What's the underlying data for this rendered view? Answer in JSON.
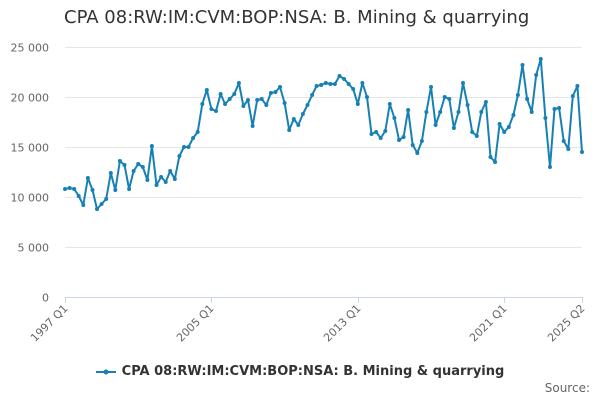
{
  "colors": {
    "series": "#1781b5",
    "grid": "#e6e6e6",
    "axis_line": "#ccd6eb",
    "tick_text": "#666666",
    "title_text": "#333333"
  },
  "source_label": "Source:",
  "chart_data": {
    "type": "line",
    "title": "CPA 08:RW:IM:CVM:BOP:NSA: B. Mining & quarrying",
    "xlabel": "",
    "ylabel": "",
    "ylim": [
      0,
      25000
    ],
    "yticks": [
      0,
      5000,
      10000,
      15000,
      20000,
      25000
    ],
    "ytick_labels": [
      "0",
      "5 000",
      "10 000",
      "15 000",
      "20 000",
      "25 000"
    ],
    "x_start": "1997 Q1",
    "x_end": "2025 Q2",
    "xtick_labels": [
      "1997 Q1",
      "2005 Q1",
      "2013 Q1",
      "2021 Q1",
      "2025 Q2"
    ],
    "legend_position": "bottom-center",
    "grid": true,
    "series": [
      {
        "name": "CPA 08:RW:IM:CVM:BOP:NSA: B. Mining & quarrying",
        "x": [
          "1997 Q1",
          "1997 Q2",
          "1997 Q3",
          "1997 Q4",
          "1998 Q1",
          "1998 Q2",
          "1998 Q3",
          "1998 Q4",
          "1999 Q1",
          "1999 Q2",
          "1999 Q3",
          "1999 Q4",
          "2000 Q1",
          "2000 Q2",
          "2000 Q3",
          "2000 Q4",
          "2001 Q1",
          "2001 Q2",
          "2001 Q3",
          "2001 Q4",
          "2002 Q1",
          "2002 Q2",
          "2002 Q3",
          "2002 Q4",
          "2003 Q1",
          "2003 Q2",
          "2003 Q3",
          "2003 Q4",
          "2004 Q1",
          "2004 Q2",
          "2004 Q3",
          "2004 Q4",
          "2005 Q1",
          "2005 Q2",
          "2005 Q3",
          "2005 Q4",
          "2006 Q1",
          "2006 Q2",
          "2006 Q3",
          "2006 Q4",
          "2007 Q1",
          "2007 Q2",
          "2007 Q3",
          "2007 Q4",
          "2008 Q1",
          "2008 Q2",
          "2008 Q3",
          "2008 Q4",
          "2009 Q1",
          "2009 Q2",
          "2009 Q3",
          "2009 Q4",
          "2010 Q1",
          "2010 Q2",
          "2010 Q3",
          "2010 Q4",
          "2011 Q1",
          "2011 Q2",
          "2011 Q3",
          "2011 Q4",
          "2012 Q1",
          "2012 Q2",
          "2012 Q3",
          "2012 Q4",
          "2013 Q1",
          "2013 Q2",
          "2013 Q3",
          "2013 Q4",
          "2014 Q1",
          "2014 Q2",
          "2014 Q3",
          "2014 Q4",
          "2015 Q1",
          "2015 Q2",
          "2015 Q3",
          "2015 Q4",
          "2016 Q1",
          "2016 Q2",
          "2016 Q3",
          "2016 Q4",
          "2017 Q1",
          "2017 Q2",
          "2017 Q3",
          "2017 Q4",
          "2018 Q1",
          "2018 Q2",
          "2018 Q3",
          "2018 Q4",
          "2019 Q1",
          "2019 Q2",
          "2019 Q3",
          "2019 Q4",
          "2020 Q1",
          "2020 Q2",
          "2020 Q3",
          "2020 Q4",
          "2021 Q1",
          "2021 Q2",
          "2021 Q3",
          "2021 Q4",
          "2022 Q1",
          "2022 Q2",
          "2022 Q3",
          "2022 Q4",
          "2023 Q1",
          "2023 Q2",
          "2023 Q3",
          "2023 Q4",
          "2024 Q1",
          "2024 Q2",
          "2024 Q3",
          "2024 Q4",
          "2025 Q1",
          "2025 Q2"
        ],
        "values": [
          10800,
          10900,
          10800,
          10100,
          9200,
          11900,
          10700,
          8800,
          9300,
          9800,
          12400,
          10700,
          13600,
          13200,
          10800,
          12600,
          13300,
          13000,
          11700,
          15100,
          11200,
          12000,
          11500,
          12600,
          11800,
          14100,
          15000,
          15000,
          15900,
          16500,
          19300,
          20700,
          18800,
          18600,
          20300,
          19300,
          19800,
          20300,
          21400,
          19100,
          19700,
          17100,
          19700,
          19800,
          19200,
          20400,
          20500,
          21000,
          19400,
          16700,
          17800,
          17200,
          18300,
          19200,
          20200,
          21100,
          21200,
          21400,
          21300,
          21300,
          22100,
          21800,
          21300,
          20800,
          19300,
          21400,
          20000,
          16300,
          16500,
          15900,
          16600,
          19300,
          17900,
          15700,
          16000,
          18700,
          15200,
          14400,
          15600,
          18500,
          21000,
          17200,
          18500,
          20000,
          19800,
          16900,
          18500,
          21400,
          19200,
          16500,
          16100,
          18500,
          19500,
          14000,
          13500,
          17300,
          16500,
          17000,
          18200,
          20200,
          23200,
          19800,
          18500,
          22200,
          23800,
          17900,
          13000,
          18800,
          18900,
          15600,
          14800,
          20100,
          21100,
          14500
        ]
      }
    ]
  }
}
